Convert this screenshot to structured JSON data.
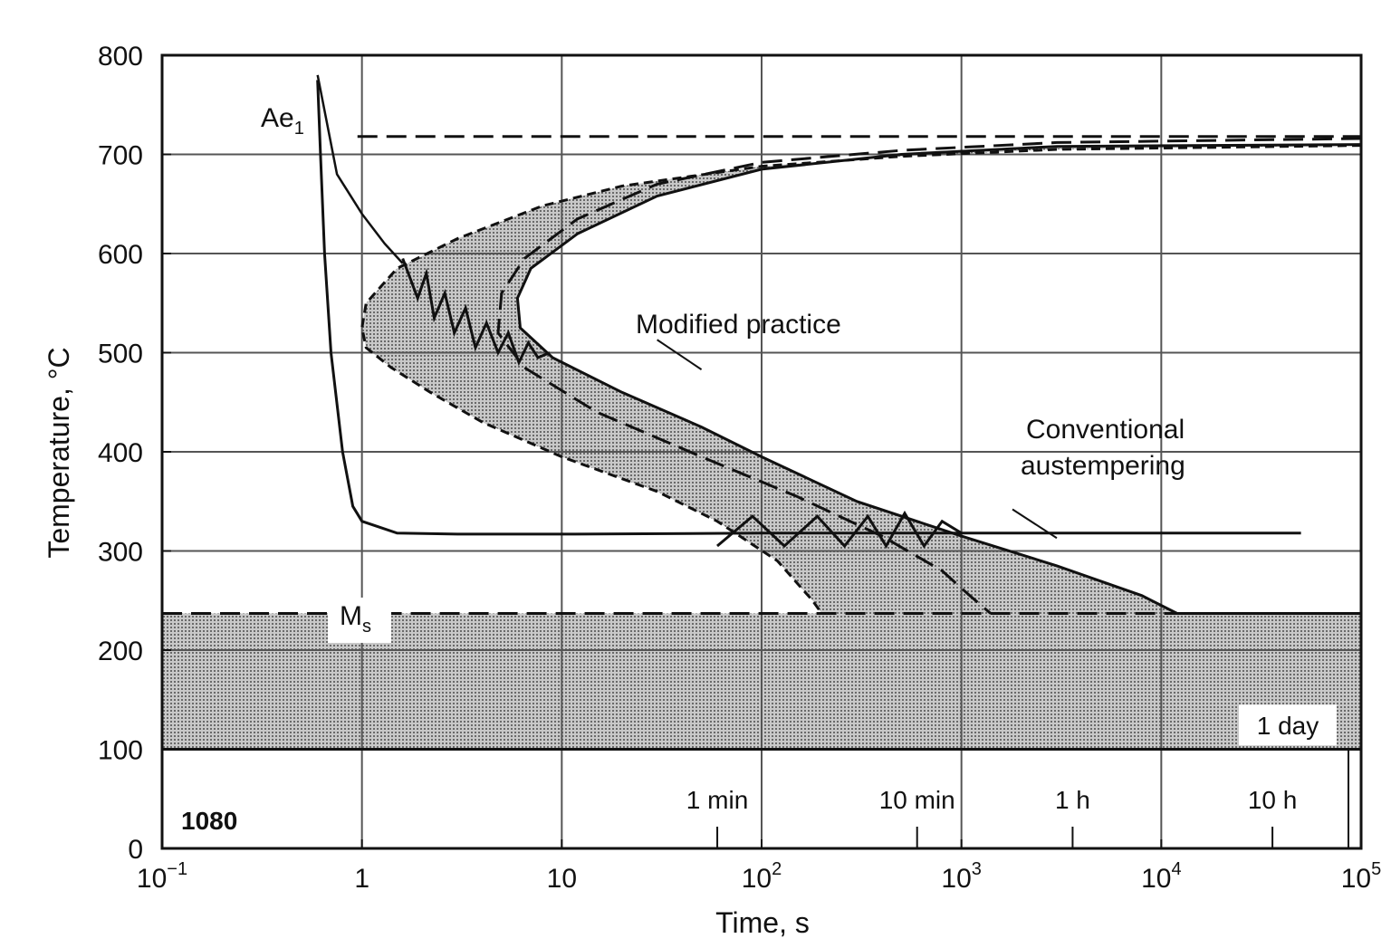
{
  "chart_data": {
    "type": "line",
    "title": "",
    "xlabel": "Time, s",
    "ylabel": "Temperature, °C",
    "x_scale": "log",
    "xlim": [
      0.1,
      100000
    ],
    "ylim": [
      0,
      800
    ],
    "grid": true,
    "x_ticks": [
      {
        "base": "10",
        "exp": "−1"
      },
      {
        "base": "1",
        "exp": ""
      },
      {
        "base": "10",
        "exp": ""
      },
      {
        "base": "10",
        "exp": "2"
      },
      {
        "base": "10",
        "exp": "3"
      },
      {
        "base": "10",
        "exp": "4"
      },
      {
        "base": "10",
        "exp": "5"
      }
    ],
    "y_ticks": [
      "0",
      "100",
      "200",
      "300",
      "400",
      "500",
      "600",
      "700",
      "800"
    ],
    "steel_grade": "1080",
    "ms_label": {
      "main": "M",
      "sub": "s"
    },
    "ae1_label": {
      "main": "Ae",
      "sub": "1"
    },
    "ae1_temperature": 718,
    "ms_temperature": 237,
    "time_marks": [
      {
        "label": "1 min",
        "seconds": 60
      },
      {
        "label": "10 min",
        "seconds": 600
      },
      {
        "label": "1 h",
        "seconds": 3600
      },
      {
        "label": "10 h",
        "seconds": 36000
      },
      {
        "label": "1 day",
        "seconds": 86400
      }
    ],
    "annotations": {
      "modified": "Modified practice",
      "conventional_line1": "Conventional",
      "conventional_line2": "austempering"
    },
    "colors": {
      "band_fill": "#9a9a9a",
      "line": "#111111",
      "grid": "#555555"
    },
    "series": [
      {
        "key": "start_outer",
        "x": [
          0.12,
          2.5,
          4,
          12,
          50,
          200,
          1000,
          5000,
          100000
        ],
        "y": [
          237,
          237,
          237,
          237,
          237,
          237,
          237,
          237,
          237
        ]
      }
    ],
    "curves": {
      "transformation_start": {
        "x": [
          100000,
          3000,
          500,
          100,
          20,
          8,
          3,
          1.5,
          1.05,
          1.0,
          1.05,
          1.4,
          2.2,
          4,
          10,
          30,
          60,
          120,
          180,
          200
        ],
        "y": [
          709,
          705,
          698,
          688,
          668,
          648,
          615,
          585,
          550,
          525,
          505,
          485,
          460,
          430,
          395,
          360,
          330,
          290,
          250,
          237
        ]
      },
      "transformation_finish": {
        "x": [
          100000,
          3000,
          500,
          100,
          30,
          12,
          7,
          6,
          6.2,
          9,
          20,
          50,
          100,
          300,
          1000,
          3000,
          8000,
          12000,
          100000
        ],
        "y": [
          710,
          708,
          700,
          685,
          658,
          620,
          585,
          555,
          525,
          495,
          460,
          425,
          395,
          350,
          315,
          285,
          255,
          237,
          237
        ]
      },
      "median_curve": {
        "x": [
          100000,
          3000,
          500,
          100,
          30,
          12,
          6.5,
          5,
          4.8,
          6.5,
          15,
          50,
          150,
          400,
          800,
          1100,
          1400
        ],
        "y": [
          716,
          712,
          704,
          692,
          670,
          635,
          595,
          560,
          520,
          485,
          440,
          395,
          355,
          315,
          280,
          255,
          237
        ]
      },
      "quench_path": {
        "x": [
          0.6,
          0.62,
          0.65,
          0.7,
          0.8,
          0.9,
          1.0,
          1.5,
          3,
          10,
          100,
          1000,
          10000,
          50000
        ],
        "y": [
          775,
          700,
          600,
          500,
          400,
          345,
          330,
          318,
          317,
          317,
          318,
          318,
          318,
          318
        ]
      },
      "ae1_curve": {
        "x": [
          0.6,
          0.75,
          1.0,
          1.3,
          1.6
        ],
        "y": [
          780,
          680,
          640,
          610,
          590
        ]
      },
      "modified_zigzag": {
        "x": [
          1.6,
          1.9,
          2.1,
          2.3,
          2.6,
          2.9,
          3.3,
          3.7,
          4.2,
          4.8,
          5.4,
          6.1,
          6.8,
          7.6,
          8.7
        ],
        "y": [
          595,
          555,
          580,
          535,
          560,
          520,
          545,
          505,
          530,
          500,
          520,
          490,
          510,
          495,
          500
        ]
      },
      "conventional_zigzag": {
        "x": [
          60,
          90,
          130,
          190,
          260,
          340,
          420,
          520,
          650,
          800,
          1000
        ],
        "y": [
          305,
          335,
          305,
          335,
          305,
          335,
          305,
          338,
          305,
          330,
          318
        ]
      }
    }
  }
}
